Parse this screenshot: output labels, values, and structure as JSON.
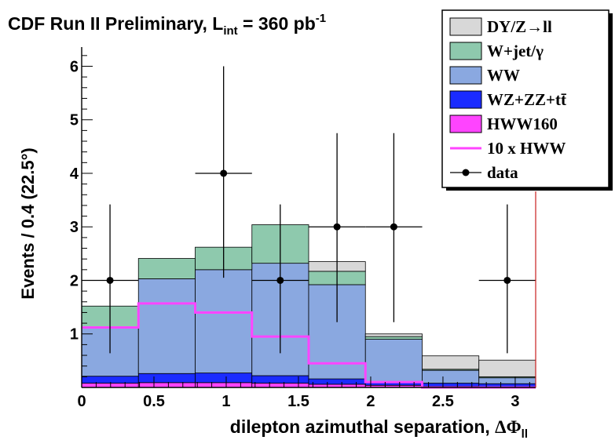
{
  "chart_data": {
    "type": "bar",
    "stacked": true,
    "title": "CDF Run II Preliminary, L",
    "title_sub": "int",
    "title_tail": " = 360 pb",
    "title_sup": "-1",
    "xlabel": "dilepton azimuthal separation, ",
    "xlabel_symbol": "ΔΦ",
    "xlabel_sub": "ll",
    "ylabel": "Events / 0.4 (22.5°)",
    "xlim": [
      0,
      3.1416
    ],
    "ylim": [
      0,
      6.3
    ],
    "x_ticks": [
      0,
      0.5,
      1,
      1.5,
      2,
      2.5,
      3
    ],
    "x_tick_labels": [
      "0",
      "0.5",
      "1",
      "1.5",
      "2",
      "2.5",
      "3"
    ],
    "y_ticks": [
      1,
      2,
      3,
      4,
      5,
      6
    ],
    "y_tick_labels": [
      "1",
      "2",
      "3",
      "4",
      "5",
      "6"
    ],
    "bin_edges": [
      0,
      0.3927,
      0.7854,
      1.1781,
      1.5708,
      1.9635,
      2.3562,
      2.7489,
      3.1416
    ],
    "series": [
      {
        "name": "HWW160",
        "color": "#ff44ff",
        "values": [
          0.08,
          0.09,
          0.09,
          0.08,
          0.06,
          0.04,
          0.02,
          0.01
        ]
      },
      {
        "name": "WZ+ZZ+tt̄",
        "color": "#1a2bff",
        "values": [
          0.13,
          0.17,
          0.18,
          0.14,
          0.1,
          0.07,
          0.06,
          0.06
        ]
      },
      {
        "name": "WW",
        "color": "#8aa8e0",
        "values": [
          0.91,
          1.77,
          1.93,
          2.1,
          1.76,
          0.79,
          0.24,
          0.11
        ]
      },
      {
        "name": "W+jet/γ",
        "color": "#8ec9ad",
        "values": [
          0.4,
          0.38,
          0.42,
          0.72,
          0.25,
          0.05,
          0.02,
          0.02
        ]
      },
      {
        "name": "DY/Z→ll",
        "color": "#d8d8d8",
        "values": [
          0.0,
          0.0,
          0.0,
          0.0,
          0.18,
          0.05,
          0.25,
          0.31
        ]
      }
    ],
    "overlay": {
      "name": "10 x HWW",
      "color": "#ff44ff",
      "values": [
        1.12,
        1.57,
        1.4,
        0.95,
        0.45,
        0.1,
        0.0,
        0.0
      ]
    },
    "data_points": {
      "name": "data",
      "x": [
        0.196,
        0.982,
        1.374,
        1.767,
        2.16,
        2.945
      ],
      "y": [
        2,
        4,
        2,
        3,
        3,
        2
      ],
      "err_low": [
        1.36,
        1.95,
        1.36,
        1.78,
        1.78,
        1.36
      ],
      "err_high": [
        1.42,
        2.0,
        1.42,
        1.75,
        1.75,
        1.42
      ]
    },
    "legend": [
      {
        "label": "DY/Z→ll",
        "kind": "box",
        "color": "#d8d8d8"
      },
      {
        "label": "W+jet/γ",
        "kind": "box",
        "color": "#8ec9ad"
      },
      {
        "label": "WW",
        "kind": "box",
        "color": "#8aa8e0"
      },
      {
        "label": "WZ+ZZ+tt̄",
        "kind": "box",
        "color": "#1a2bff"
      },
      {
        "label": "HWW160",
        "kind": "box",
        "color": "#ff44ff"
      },
      {
        "label": "10 x HWW",
        "kind": "line",
        "color": "#ff44ff"
      },
      {
        "label": "data",
        "kind": "marker",
        "color": "#000000"
      }
    ],
    "legend_position": "top-right",
    "grid": false
  }
}
